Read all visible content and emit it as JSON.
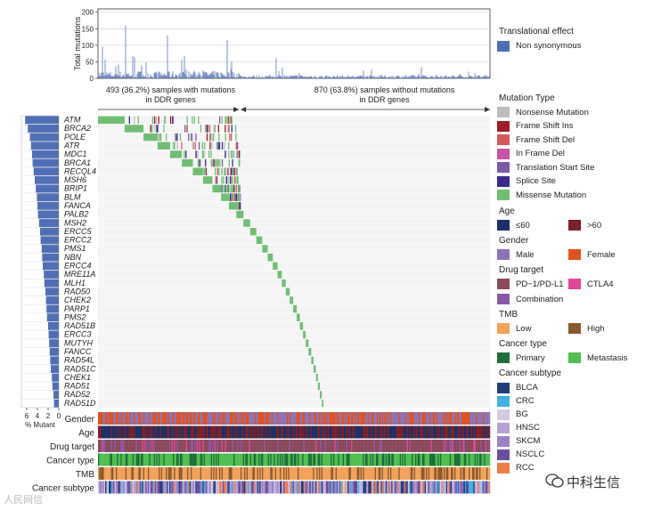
{
  "chart_data": {
    "type": "heatmap",
    "subtype": "oncoprint",
    "top_bar": {
      "ylabel": "Total mutations",
      "yticks": [
        0,
        50,
        100,
        150,
        200
      ],
      "ylim": [
        0,
        210
      ],
      "series_color": "#4f6fb5"
    },
    "annotations": {
      "with_mutations": "493 (36.2%) samples with mutations",
      "without_mutations": "870 (63.8%) samples without mutations",
      "sub_label": "in DDR genes"
    },
    "genes": [
      "ATM",
      "BRCA2",
      "POLE",
      "ATR",
      "MDC1",
      "BRCA1",
      "RECQL4",
      "MSH6",
      "BRIP1",
      "BLM",
      "FANCA",
      "PALB2",
      "MSH2",
      "ERCC5",
      "ERCC2",
      "PMS1",
      "NBN",
      "ERCC4",
      "MRE11A",
      "MLH1",
      "RAD50",
      "CHEK2",
      "PARP1",
      "PMS2",
      "RAD51B",
      "ERCC3",
      "MUTYH",
      "FANCC",
      "RAD54L",
      "RAD51C",
      "CHEK1",
      "RAD51",
      "RAD52",
      "RAD51D"
    ],
    "percent_mutant": [
      6.3,
      5.8,
      5.4,
      5.2,
      5.0,
      4.9,
      4.7,
      4.5,
      4.3,
      4.1,
      4.0,
      3.9,
      3.7,
      3.5,
      3.4,
      3.2,
      3.1,
      3.0,
      2.8,
      2.7,
      2.5,
      2.4,
      2.3,
      2.2,
      2.0,
      1.9,
      1.8,
      1.7,
      1.6,
      1.5,
      1.3,
      1.2,
      1.0,
      0.9
    ],
    "left_bar": {
      "xlabel": "% Mutant",
      "xticks": [
        6,
        4,
        2,
        0
      ]
    },
    "track_labels": [
      "Gender",
      "Age",
      "Drug target",
      "Cancer type",
      "TMB",
      "Cancer subtype"
    ]
  },
  "legend": {
    "translational": {
      "title": "Translational effect",
      "items": [
        {
          "label": "Non synonymous",
          "color": "#4f6fb5"
        }
      ]
    },
    "mutation_type": {
      "title": "Mutation Type",
      "items": [
        {
          "label": "Nonsense Mutation",
          "color": "#bdbdbd"
        },
        {
          "label": "Frame Shift Ins",
          "color": "#a01c2b"
        },
        {
          "label": "Frame Shift Del",
          "color": "#d05a5a"
        },
        {
          "label": "In Frame Del",
          "color": "#c954a8"
        },
        {
          "label": "Translation Start Site",
          "color": "#7b5aa8"
        },
        {
          "label": "Splice Site",
          "color": "#3b2a8a"
        },
        {
          "label": "Missense Mutation",
          "color": "#6fbf73"
        }
      ]
    },
    "age": {
      "title": "Age",
      "items": [
        {
          "label": "≤60",
          "color": "#1c2f66"
        },
        {
          "label": ">60",
          "color": "#7b1f28"
        }
      ]
    },
    "gender": {
      "title": "Gender",
      "items": [
        {
          "label": "Male",
          "color": "#8c73b5"
        },
        {
          "label": "Female",
          "color": "#e0521f"
        }
      ]
    },
    "drug": {
      "title": "Drug target",
      "items": [
        {
          "label": "PD−1/PD-L1",
          "color": "#8a4a5c"
        },
        {
          "label": "CTLA4",
          "color": "#e0479a"
        },
        {
          "label": "Combination",
          "color": "#8a58a8"
        }
      ]
    },
    "tmb": {
      "title": "TMB",
      "items": [
        {
          "label": "Low",
          "color": "#f2a25a"
        },
        {
          "label": "High",
          "color": "#8a5a2e"
        }
      ]
    },
    "ctype": {
      "title": "Cancer type",
      "items": [
        {
          "label": "Primary",
          "color": "#1f6e3a"
        },
        {
          "label": "Metastasis",
          "color": "#4fbf4f"
        }
      ]
    },
    "csub": {
      "title": "Cancer subtype",
      "items": [
        {
          "label": "BLCA",
          "color": "#1f3f7a"
        },
        {
          "label": "CRC",
          "color": "#3fb0e0"
        },
        {
          "label": "BG",
          "color": "#d4c8e4"
        },
        {
          "label": "HNSC",
          "color": "#b6a2d2"
        },
        {
          "label": "SKCM",
          "color": "#9a82c4"
        },
        {
          "label": "NSCLC",
          "color": "#6a4fa0"
        },
        {
          "label": "RCC",
          "color": "#f07c4a"
        }
      ]
    }
  },
  "watermarks": {
    "right": "中科生信",
    "left": "人民网信"
  }
}
